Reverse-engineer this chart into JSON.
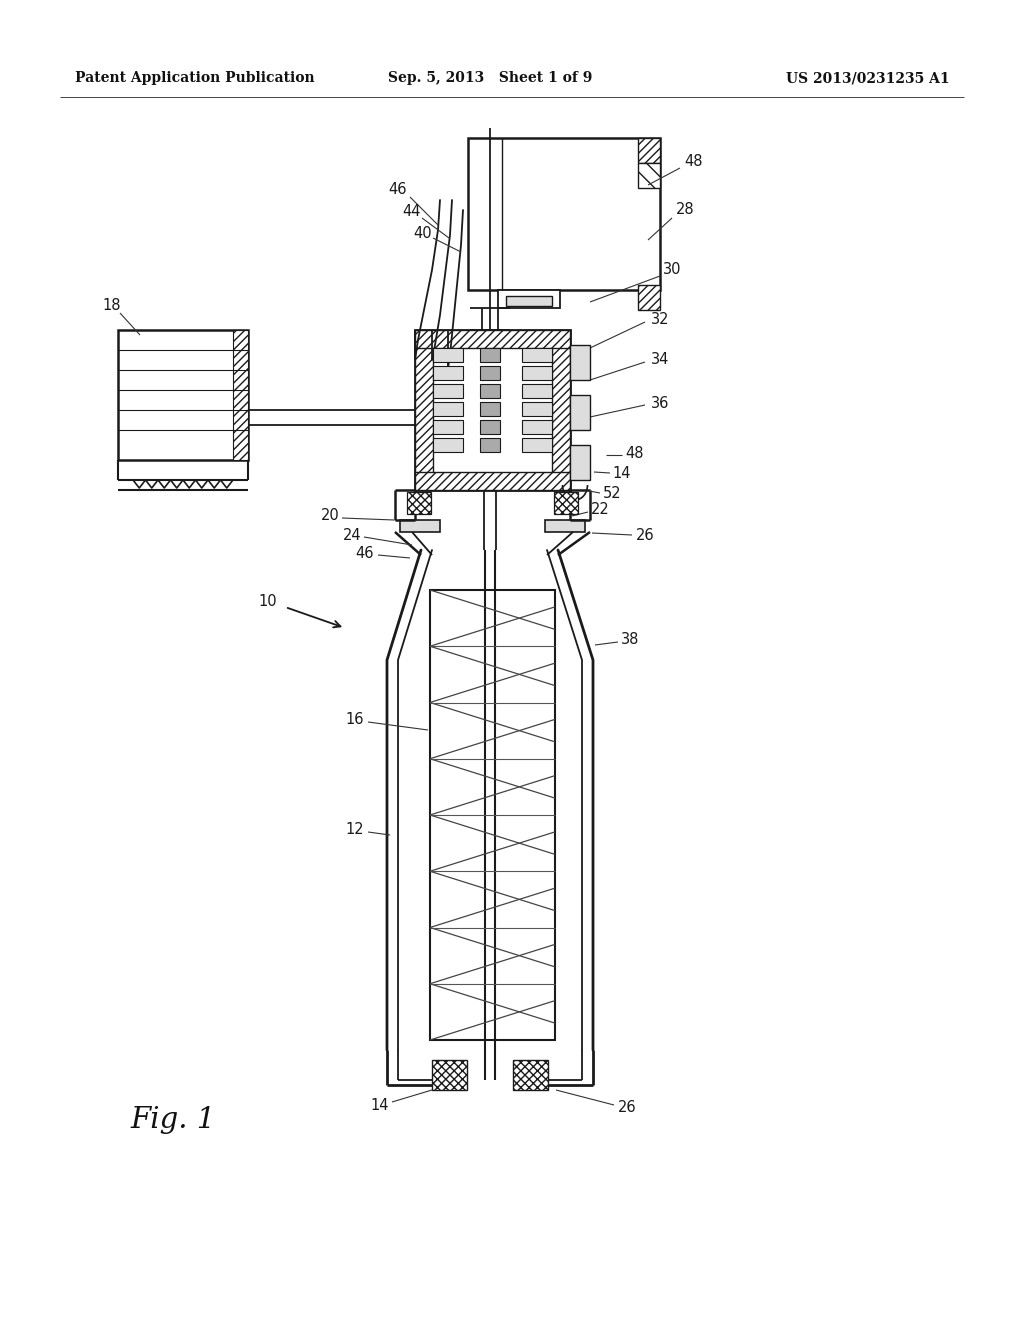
{
  "header_left": "Patent Application Publication",
  "header_center": "Sep. 5, 2013   Sheet 1 of 9",
  "header_right": "US 2013/0231235 A1",
  "fig_label": "Fig. 1",
  "bg": "#ffffff",
  "lc": "#1a1a1a",
  "gray_light": "#dddddd",
  "gray_med": "#aaaaaa",
  "gray_dark": "#888888"
}
